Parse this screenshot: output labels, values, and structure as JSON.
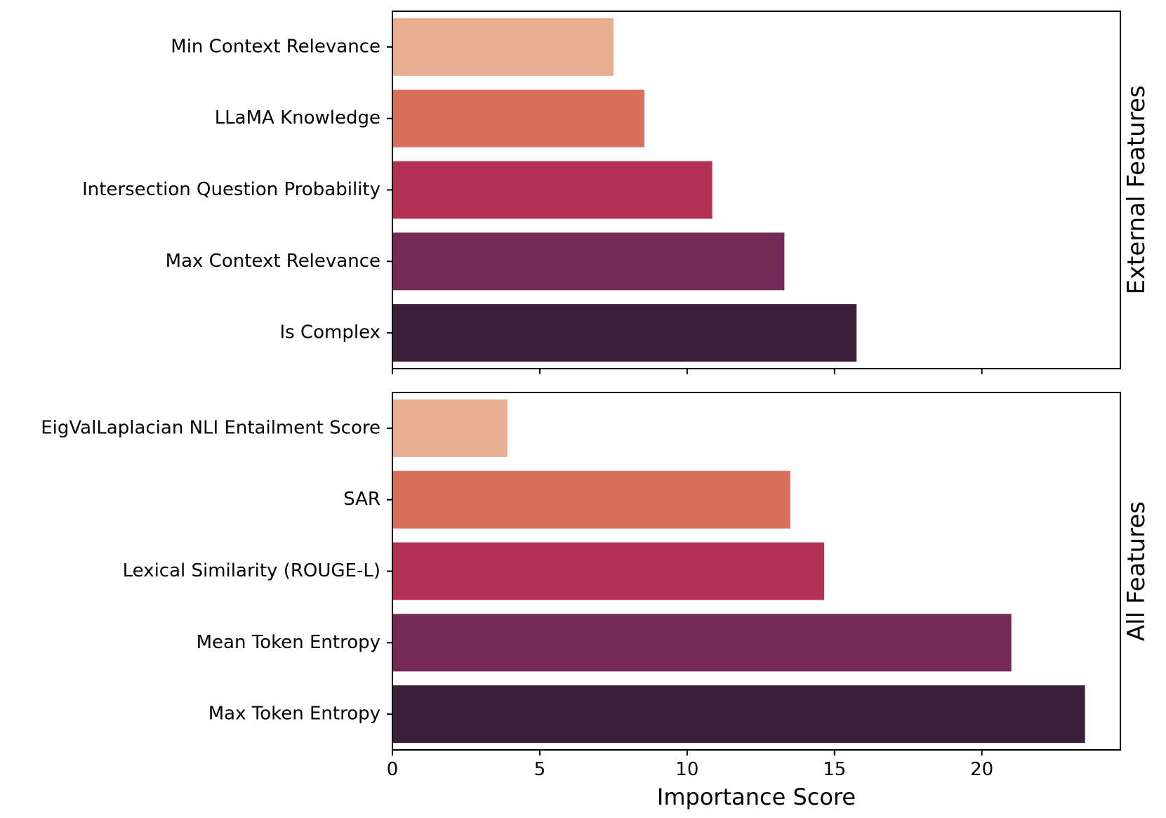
{
  "chart_data": {
    "type": "bar",
    "orientation": "horizontal",
    "xlabel": "Importance Score",
    "xlim": [
      0,
      24.7
    ],
    "xticks": [
      0,
      5,
      10,
      15,
      20
    ],
    "shared_x": true,
    "grid": false,
    "palette": [
      "#e9ae90",
      "#d96f5a",
      "#b33155",
      "#742a56",
      "#3b1f3b"
    ],
    "panels": [
      {
        "facet_label": "External Features",
        "categories": [
          "Min Context Relevance",
          "LLaMA Knowledge",
          "Intersection Question Probability",
          "Max Context Relevance",
          "Is Complex"
        ],
        "values": [
          7.5,
          8.55,
          10.85,
          13.3,
          15.75
        ]
      },
      {
        "facet_label": "All Features",
        "categories": [
          "EigValLaplacian NLI Entailment Score",
          "SAR",
          "Lexical Similarity (ROUGE-L)",
          "Mean Token Entropy",
          "Max Token Entropy"
        ],
        "values": [
          3.9,
          13.5,
          14.65,
          21.0,
          23.5
        ]
      }
    ]
  }
}
